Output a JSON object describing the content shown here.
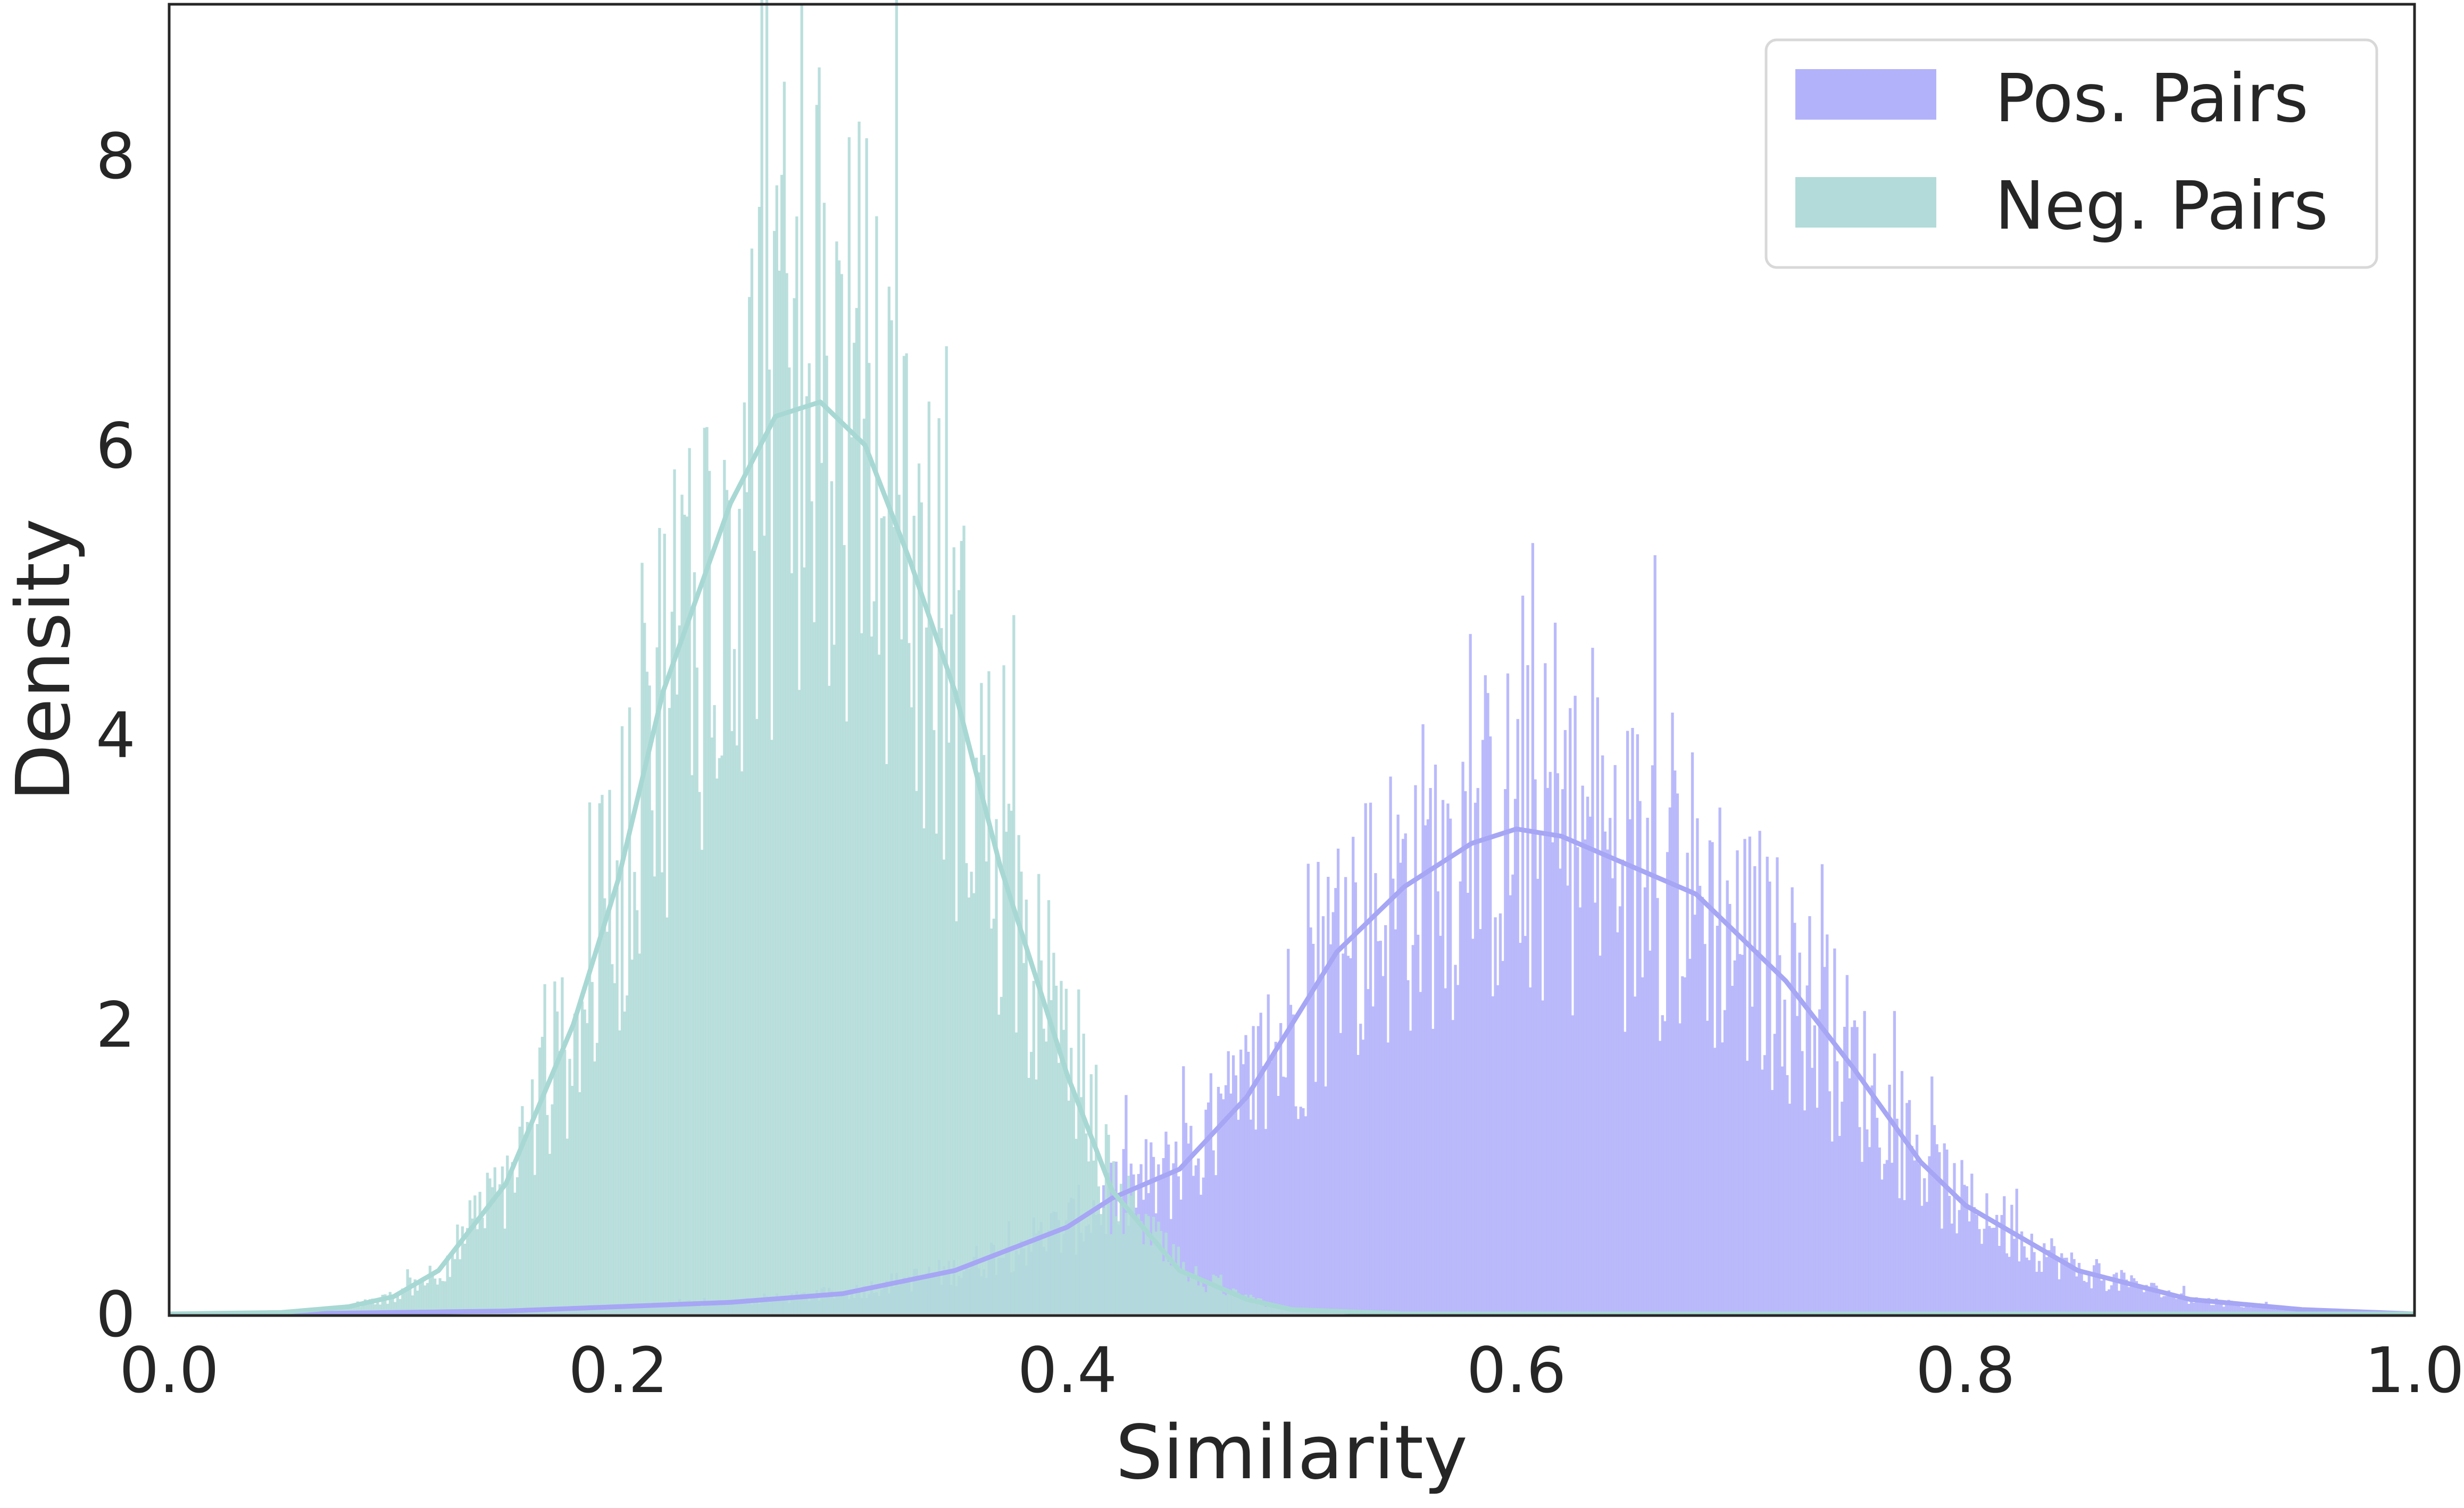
{
  "chart_data": {
    "type": "bar",
    "subtype": "histogram-with-kde",
    "title": "",
    "xlabel": "Similarity",
    "ylabel": "Density",
    "xlim": [
      0.0,
      1.0
    ],
    "ylim": [
      0,
      8.9
    ],
    "xticks": [
      "0.0",
      "0.2",
      "0.4",
      "0.6",
      "0.8",
      "1.0"
    ],
    "yticks": [
      "0",
      "2",
      "4",
      "6",
      "8"
    ],
    "grid": false,
    "legend_position": "top-right",
    "series": [
      {
        "name": "Pos. Pairs",
        "color": "#b2b2fb",
        "kde_line_color": "#a6a6f5",
        "kde_x": [
          0.0,
          0.05,
          0.1,
          0.15,
          0.2,
          0.25,
          0.3,
          0.35,
          0.4,
          0.42,
          0.45,
          0.48,
          0.5,
          0.52,
          0.55,
          0.58,
          0.6,
          0.62,
          0.65,
          0.68,
          0.7,
          0.72,
          0.75,
          0.78,
          0.8,
          0.85,
          0.9,
          0.95,
          1.0
        ],
        "kde_density": [
          0.0,
          0.0,
          0.01,
          0.02,
          0.05,
          0.08,
          0.14,
          0.3,
          0.6,
          0.8,
          1.0,
          1.5,
          2.0,
          2.5,
          2.95,
          3.25,
          3.35,
          3.3,
          3.1,
          2.9,
          2.6,
          2.3,
          1.7,
          1.05,
          0.75,
          0.3,
          0.1,
          0.03,
          0.0
        ]
      },
      {
        "name": "Neg. Pairs",
        "color": "#b2dbd9",
        "kde_line_color": "#a8d8d3",
        "kde_x": [
          0.0,
          0.05,
          0.08,
          0.1,
          0.12,
          0.15,
          0.18,
          0.2,
          0.22,
          0.25,
          0.27,
          0.29,
          0.31,
          0.33,
          0.35,
          0.37,
          0.4,
          0.42,
          0.45,
          0.48,
          0.5,
          0.55
        ],
        "kde_density": [
          0.0,
          0.01,
          0.05,
          0.12,
          0.3,
          0.9,
          2.0,
          3.0,
          4.3,
          5.6,
          6.2,
          6.3,
          6.0,
          5.2,
          4.3,
          3.1,
          1.65,
          0.85,
          0.3,
          0.1,
          0.03,
          0.0
        ]
      }
    ]
  }
}
